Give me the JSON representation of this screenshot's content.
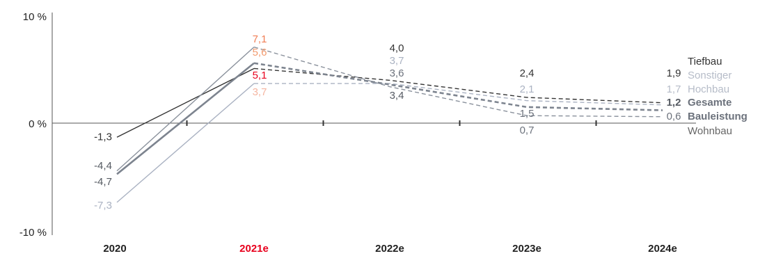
{
  "colors": {
    "highlight": "#e8001d",
    "text": "#333333",
    "axis": "#555555"
  },
  "chart_data": {
    "type": "line",
    "categories": [
      "2020",
      "2021e",
      "2022e",
      "2023e",
      "2024e"
    ],
    "highlight_category": "2021e",
    "y_ticks": [
      {
        "value": 10,
        "label": "10 %"
      },
      {
        "value": 0,
        "label": "0 %"
      },
      {
        "value": -10,
        "label": "-10 %"
      }
    ],
    "ylim": [
      -10,
      10
    ],
    "forecast_from_index": 1,
    "series": [
      {
        "name": "Tiefbau",
        "color": "#333333",
        "label_color": "#333333",
        "values": [
          -1.3,
          5.1,
          4.0,
          2.4,
          1.9
        ],
        "labels": [
          "-1,3",
          "5,1",
          "4,0",
          "2,4",
          "1,9"
        ],
        "label_colors": [
          "#333333",
          "#e8001d",
          "#333333",
          "#333333",
          "#333333"
        ]
      },
      {
        "name": "Sonstiger Hochbau",
        "color": "#aab2c2",
        "label_color": "#b6bcc8",
        "values": [
          -7.3,
          3.7,
          3.7,
          2.1,
          1.7
        ],
        "labels": [
          "-7,3",
          "3,7",
          "3,7",
          "2,1",
          "1,7"
        ],
        "label_colors": [
          "#aab2c2",
          "#f5b5a0",
          "#aab2c2",
          "#aab2c2",
          "#b6bcc8"
        ]
      },
      {
        "name": "Gesamte Bauleistung",
        "color": "#7d848f",
        "label_color": "#6c727c",
        "values": [
          -4.7,
          5.6,
          3.6,
          1.5,
          1.2
        ],
        "labels": [
          "-4,7",
          "5,6",
          "3,6",
          "1,5",
          "1,2"
        ],
        "label_colors": [
          "#555a62",
          "#f29a6e",
          "#6c727c",
          "#6c727c",
          "#555a62"
        ]
      },
      {
        "name": "Wohnbau",
        "color": "#8a919c",
        "label_color": "#666666",
        "values": [
          -4.4,
          7.1,
          3.4,
          0.7,
          0.6
        ],
        "labels": [
          "-4,4",
          "7,1",
          "3,4",
          "0,7",
          "0,6"
        ],
        "label_colors": [
          "#555a62",
          "#f07e55",
          "#555a62",
          "#6c727c",
          "#6c727c"
        ]
      }
    ]
  }
}
